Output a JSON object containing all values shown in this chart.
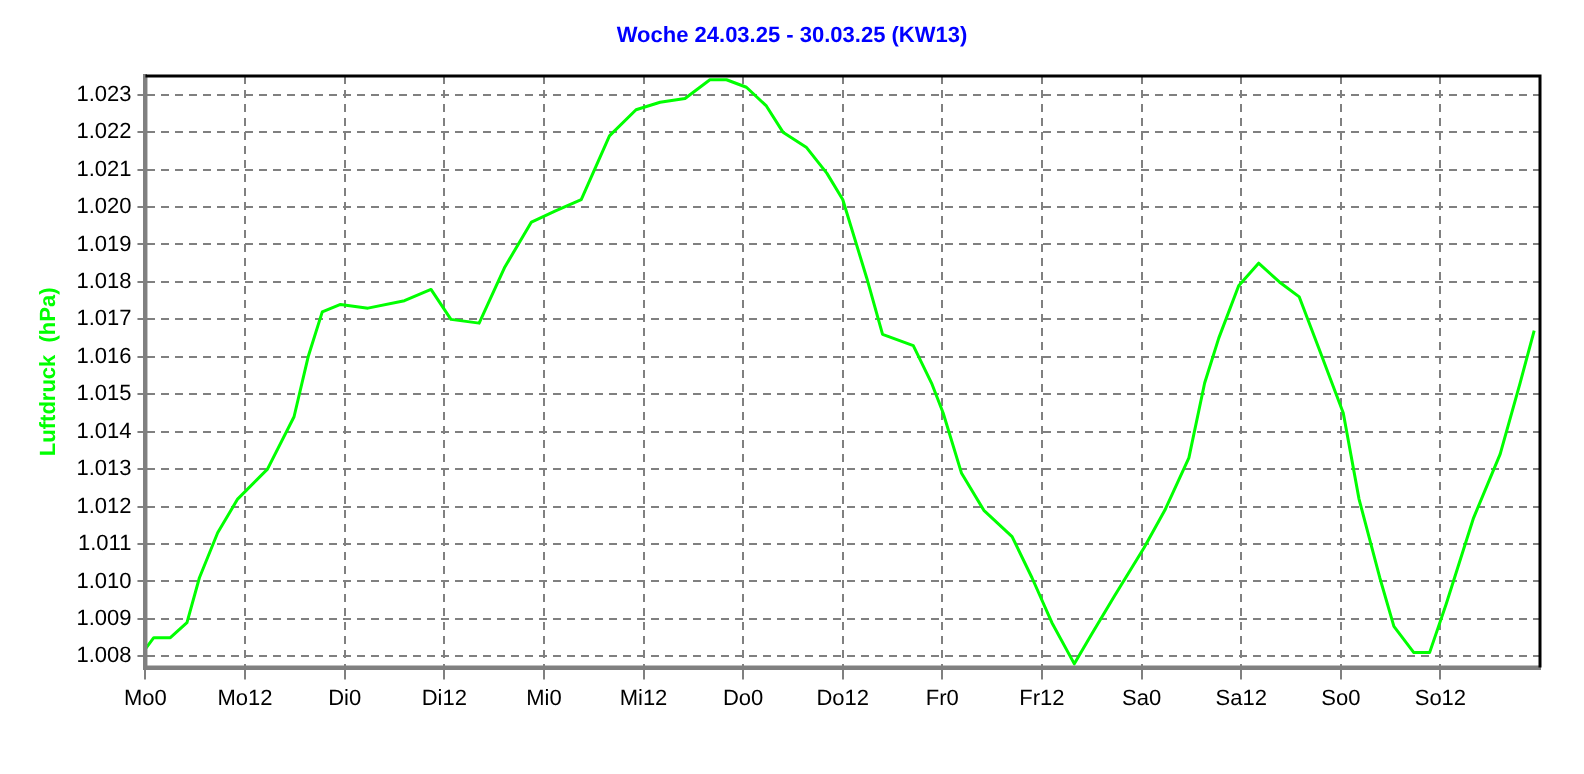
{
  "chart_data": {
    "type": "line",
    "title": "Woche 24.03.25 - 30.03.25 (KW13)",
    "ylabel": "Luftdruck  (hPa)",
    "x": [
      "--03-24T00:00",
      "--03-24T01:00",
      "--03-24T03:00",
      "--03-24T05:00",
      "--03-24T06:30",
      "--03-24T08:42",
      "--03-24T11:06",
      "--03-24T14:42",
      "--03-24T17:54",
      "--03-24T19:36",
      "--03-24T21:18",
      "--03-24T23:30",
      "--03-25T02:48",
      "--03-25T07:12",
      "--03-25T10:24",
      "--03-25T12:48",
      "--03-25T16:12",
      "--03-25T19:18",
      "--03-25T22:30",
      "--03-26T01:24",
      "--03-26T04:30",
      "--03-26T07:54",
      "--03-26T11:06",
      "--03-26T14:00",
      "--03-26T17:00",
      "--03-26T20:00",
      "--03-26T22:00",
      "--03-27T00:24",
      "--03-27T02:48",
      "--03-27T04:48",
      "--03-27T07:36",
      "--03-27T10:06",
      "--03-27T12:00",
      "--03-27T14:54",
      "--03-27T16:48",
      "--03-27T20:30",
      "--03-27T22:42",
      "--03-28T00:06",
      "--03-28T02:18",
      "--03-28T05:00",
      "--03-28T08:24",
      "--03-28T10:48",
      "--03-28T13:12",
      "--03-28T15:54",
      "--03-28T18:00",
      "--03-28T20:42",
      "--03-29T00:18",
      "--03-29T02:48",
      "--03-29T05:42",
      "--03-29T07:36",
      "--03-29T09:18",
      "--03-29T11:42",
      "--03-29T14:06",
      "--03-29T16:36",
      "--03-29T19:00",
      "--03-29T21:24",
      "--03-30T00:18",
      "--03-30T02:12",
      "--03-30T04:42",
      "--03-30T06:24",
      "--03-30T08:48",
      "--03-30T10:42",
      "--03-30T12:42",
      "--03-30T16:00",
      "--03-30T19:12",
      "--03-30T21:36",
      "--03-30T23:18"
    ],
    "series": [
      {
        "color": "#00ff00",
        "values": [
          1.0082,
          1.0085,
          1.0085,
          1.0089,
          1.0101,
          1.0113,
          1.0122,
          1.013,
          1.0144,
          1.016,
          1.0172,
          1.0174,
          1.0173,
          1.0175,
          1.0178,
          1.017,
          1.0169,
          1.0184,
          1.0196,
          1.0199,
          1.0202,
          1.0219,
          1.0226,
          1.0228,
          1.0229,
          1.0234,
          1.0234,
          1.0232,
          1.0227,
          1.022,
          1.0216,
          1.0209,
          1.0202,
          1.0181,
          1.0166,
          1.0163,
          1.0153,
          1.0145,
          1.0129,
          1.0119,
          1.0112,
          1.0101,
          1.0089,
          1.0078,
          1.0086,
          1.0096,
          1.0109,
          1.0119,
          1.0133,
          1.0153,
          1.0165,
          1.0179,
          1.0185,
          1.018,
          1.0176,
          1.0162,
          1.0145,
          1.0122,
          1.0101,
          1.0088,
          1.0081,
          1.0081,
          1.0094,
          1.0117,
          1.0134,
          1.0153,
          1.0167
        ]
      }
    ],
    "xlim": [
      "--03-24T00:00",
      "--03-31T00:00"
    ],
    "xticks": [
      {
        "value": "--03-24T00:00",
        "label": "Mo0"
      },
      {
        "value": "--03-24T12:00",
        "label": "Mo12"
      },
      {
        "value": "--03-25T00:00",
        "label": "Di0"
      },
      {
        "value": "--03-25T12:00",
        "label": "Di12"
      },
      {
        "value": "--03-26T00:00",
        "label": "Mi0"
      },
      {
        "value": "--03-26T12:00",
        "label": "Mi12"
      },
      {
        "value": "--03-27T00:00",
        "label": "Do0"
      },
      {
        "value": "--03-27T12:00",
        "label": "Do12"
      },
      {
        "value": "--03-28T00:00",
        "label": "Fr0"
      },
      {
        "value": "--03-28T12:00",
        "label": "Fr12"
      },
      {
        "value": "--03-29T00:00",
        "label": "Sa0"
      },
      {
        "value": "--03-29T12:00",
        "label": "Sa12"
      },
      {
        "value": "--03-30T00:00",
        "label": "So0"
      },
      {
        "value": "--03-30T12:00",
        "label": "So12"
      }
    ],
    "ylim": [
      1.0077,
      1.0235
    ],
    "yticks": [
      {
        "value": 1.008,
        "label": "1.008"
      },
      {
        "value": 1.009,
        "label": "1.009"
      },
      {
        "value": 1.01,
        "label": "1.010"
      },
      {
        "value": 1.011,
        "label": "1.011"
      },
      {
        "value": 1.012,
        "label": "1.012"
      },
      {
        "value": 1.013,
        "label": "1.013"
      },
      {
        "value": 1.014,
        "label": "1.014"
      },
      {
        "value": 1.015,
        "label": "1.015"
      },
      {
        "value": 1.016,
        "label": "1.016"
      },
      {
        "value": 1.017,
        "label": "1.017"
      },
      {
        "value": 1.018,
        "label": "1.018"
      },
      {
        "value": 1.019,
        "label": "1.019"
      },
      {
        "value": 1.02,
        "label": "1.020"
      },
      {
        "value": 1.021,
        "label": "1.021"
      },
      {
        "value": 1.022,
        "label": "1.022"
      },
      {
        "value": 1.023,
        "label": "1.023"
      }
    ],
    "grid": true,
    "legend": false,
    "marker": "none",
    "line_style": "solid"
  }
}
